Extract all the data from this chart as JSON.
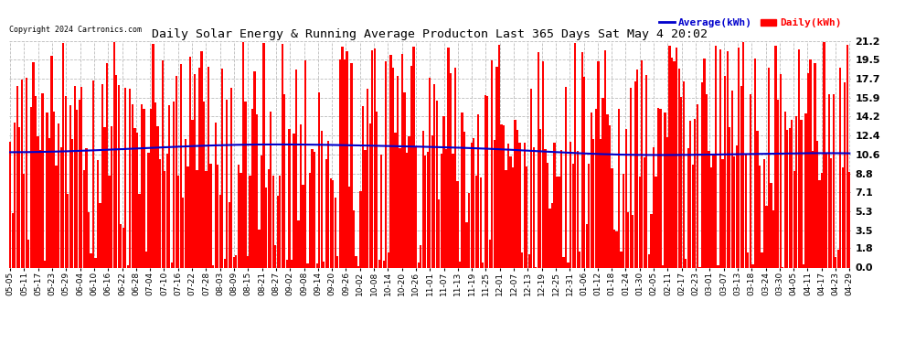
{
  "title": "Daily Solar Energy & Running Average Producton Last 365 Days Sat May 4 20:02",
  "copyright": "Copyright 2024 Cartronics.com",
  "legend_average": "Average(kWh)",
  "legend_daily": "Daily(kWh)",
  "yticks": [
    0.0,
    1.8,
    3.5,
    5.3,
    7.1,
    8.8,
    10.6,
    12.4,
    14.2,
    15.9,
    17.7,
    19.5,
    21.2
  ],
  "ymax": 21.2,
  "ymin": 0.0,
  "bar_color": "#ff0000",
  "avg_color": "#0000cc",
  "background_color": "#ffffff",
  "grid_color": "#bbbbbb",
  "title_color": "#000000",
  "copyright_color": "#000000",
  "legend_avg_color": "#0000cc",
  "legend_daily_color": "#ff0000",
  "num_bars": 365,
  "x_labels": [
    "05-05",
    "05-11",
    "05-17",
    "05-23",
    "05-29",
    "06-04",
    "06-10",
    "06-16",
    "06-22",
    "06-28",
    "07-04",
    "07-10",
    "07-16",
    "07-22",
    "07-28",
    "08-03",
    "08-09",
    "08-15",
    "08-21",
    "08-27",
    "09-02",
    "09-08",
    "09-14",
    "09-20",
    "09-26",
    "10-02",
    "10-08",
    "10-14",
    "10-20",
    "10-26",
    "11-01",
    "11-07",
    "11-13",
    "11-19",
    "11-25",
    "12-01",
    "12-07",
    "12-13",
    "12-19",
    "12-25",
    "12-31",
    "01-06",
    "01-12",
    "01-18",
    "01-24",
    "01-30",
    "02-05",
    "02-11",
    "02-17",
    "02-23",
    "03-01",
    "03-07",
    "03-13",
    "03-18",
    "03-24",
    "03-30",
    "04-05",
    "04-11",
    "04-17",
    "04-23",
    "04-29"
  ],
  "avg_points_x": [
    0,
    60,
    100,
    160,
    210,
    260,
    310,
    364
  ],
  "avg_points_y": [
    10.8,
    11.2,
    11.5,
    11.4,
    11.1,
    10.6,
    10.6,
    10.7
  ]
}
